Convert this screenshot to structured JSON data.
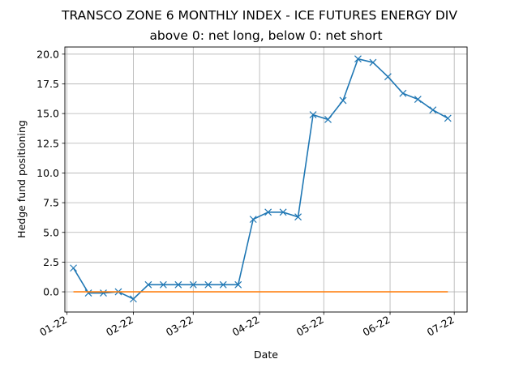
{
  "chart_data": {
    "type": "line",
    "title": "TRANSCO ZONE 6 MONTHLY INDEX - ICE FUTURES ENERGY DIV",
    "subtitle": "above 0: net long, below 0: net short",
    "xlabel": "Date",
    "ylabel": "Hedge fund positioning",
    "x_ticks": [
      "2022-01-01",
      "2022-02-01",
      "2022-03-01",
      "2022-04-01",
      "2022-05-01",
      "2022-06-01",
      "2022-07-01"
    ],
    "x_tick_labels": [
      "01-22",
      "02-22",
      "03-22",
      "04-22",
      "05-22",
      "06-22",
      "07-22"
    ],
    "y_ticks": [
      0.0,
      2.5,
      5.0,
      7.5,
      10.0,
      12.5,
      15.0,
      17.5,
      20.0
    ],
    "y_tick_labels": [
      "0.0",
      "2.5",
      "5.0",
      "7.5",
      "10.0",
      "12.5",
      "15.0",
      "17.5",
      "20.0"
    ],
    "xlim": [
      "2021-12-31",
      "2022-07-07"
    ],
    "ylim": [
      -1.7,
      20.6
    ],
    "grid": true,
    "series": [
      {
        "color": "#1f77b4",
        "marker": "x",
        "points": [
          {
            "x": "2022-01-04",
            "y": 2.0
          },
          {
            "x": "2022-01-11",
            "y": -0.1
          },
          {
            "x": "2022-01-18",
            "y": -0.1
          },
          {
            "x": "2022-01-25",
            "y": 0.0
          },
          {
            "x": "2022-02-01",
            "y": -0.6
          },
          {
            "x": "2022-02-08",
            "y": 0.6
          },
          {
            "x": "2022-02-15",
            "y": 0.6
          },
          {
            "x": "2022-02-22",
            "y": 0.6
          },
          {
            "x": "2022-03-01",
            "y": 0.6
          },
          {
            "x": "2022-03-08",
            "y": 0.6
          },
          {
            "x": "2022-03-15",
            "y": 0.6
          },
          {
            "x": "2022-03-22",
            "y": 0.6
          },
          {
            "x": "2022-03-29",
            "y": 6.1
          },
          {
            "x": "2022-04-05",
            "y": 6.7
          },
          {
            "x": "2022-04-12",
            "y": 6.7
          },
          {
            "x": "2022-04-19",
            "y": 6.3
          },
          {
            "x": "2022-04-26",
            "y": 14.9
          },
          {
            "x": "2022-05-03",
            "y": 14.5
          },
          {
            "x": "2022-05-10",
            "y": 16.1
          },
          {
            "x": "2022-05-17",
            "y": 19.6
          },
          {
            "x": "2022-05-24",
            "y": 19.3
          },
          {
            "x": "2022-05-31",
            "y": 18.1
          },
          {
            "x": "2022-06-07",
            "y": 16.7
          },
          {
            "x": "2022-06-14",
            "y": 16.2
          },
          {
            "x": "2022-06-21",
            "y": 15.3
          },
          {
            "x": "2022-06-28",
            "y": 14.6
          }
        ]
      },
      {
        "color": "#ff7f0e",
        "marker": "none",
        "points": [
          {
            "x": "2022-01-04",
            "y": 0.0
          },
          {
            "x": "2022-06-28",
            "y": 0.0
          }
        ]
      }
    ]
  }
}
